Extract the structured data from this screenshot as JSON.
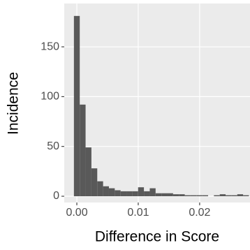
{
  "chart_data": {
    "type": "histogram",
    "x_label": "Difference in Score",
    "y_label": "Incidence",
    "bins": [
      -0.000475,
      0.000475,
      0.001425,
      0.002375,
      0.003325,
      0.004275,
      0.005225,
      0.006175,
      0.007125,
      0.008075,
      0.009025,
      0.009975,
      0.010925,
      0.011875,
      0.012825,
      0.013775,
      0.014725,
      0.015675,
      0.016625,
      0.017575,
      0.018525,
      0.019475,
      0.020425,
      0.021375,
      0.022325,
      0.023275,
      0.024225,
      0.025175,
      0.026125,
      0.027075,
      0.028025
    ],
    "values": [
      181,
      92,
      49,
      28,
      15,
      10,
      8,
      6,
      5,
      5,
      5,
      9,
      5,
      8,
      3,
      3,
      3,
      2,
      2,
      1,
      1,
      1,
      1,
      0,
      1,
      2,
      1,
      1,
      2,
      1
    ],
    "color": "#595959",
    "xlim": [
      -0.00205,
      0.0282
    ],
    "ylim": [
      -6.3,
      193.5
    ],
    "xticks": [
      {
        "value": 0,
        "label": "0.00"
      },
      {
        "value": 0.01,
        "label": "0.01"
      },
      {
        "value": 0.02,
        "label": "0.02"
      }
    ],
    "yticks": [
      0,
      50,
      100,
      150
    ],
    "grid": true
  }
}
